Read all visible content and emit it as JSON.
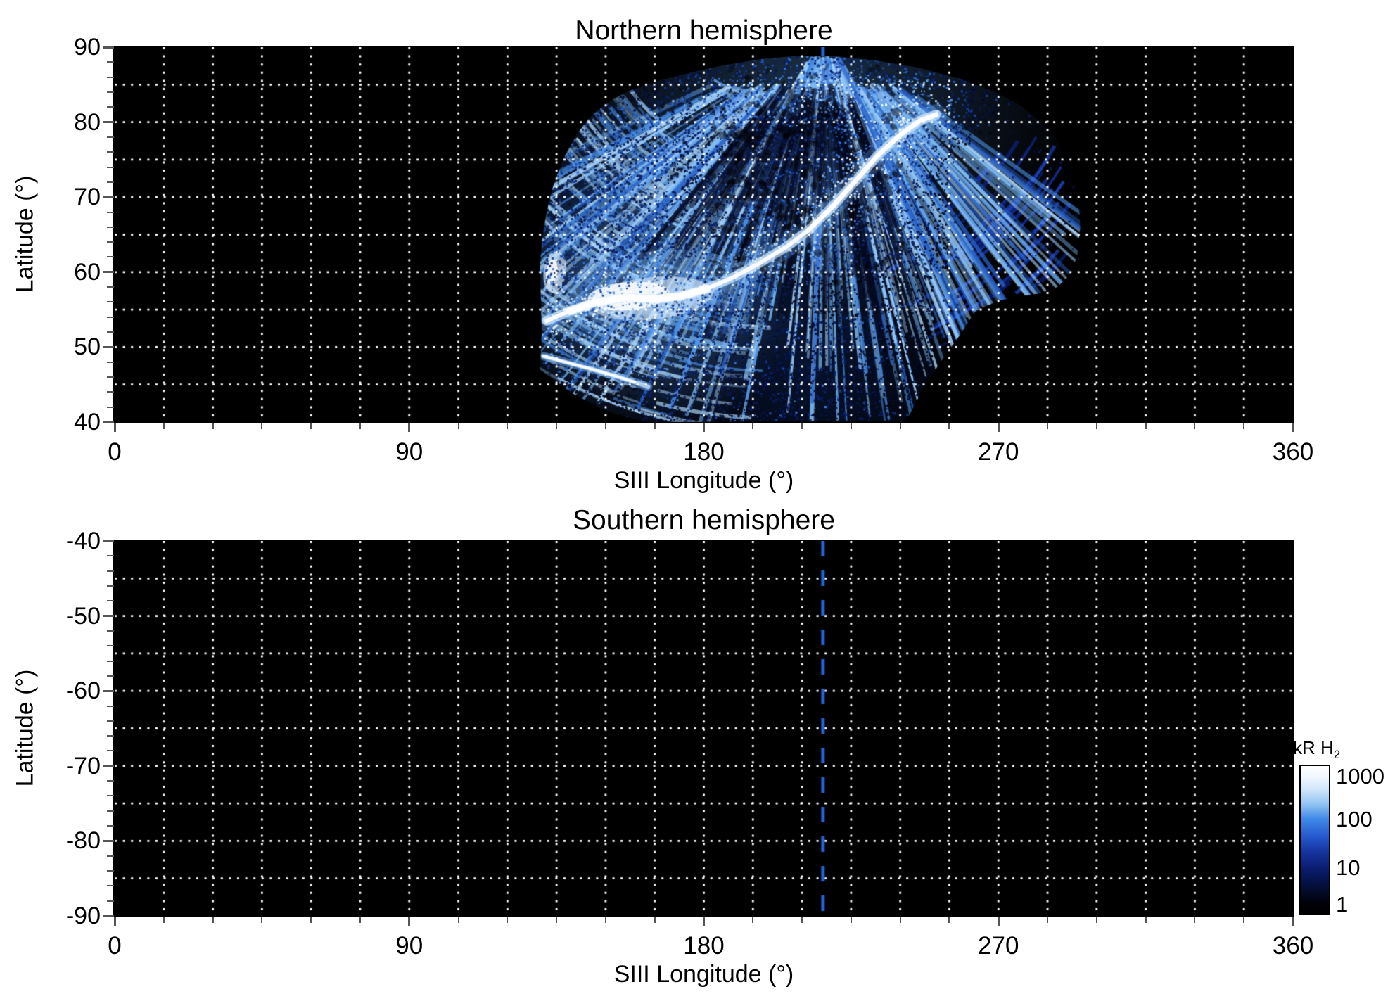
{
  "figure": {
    "panels": [
      {
        "id": "north",
        "title": "Northern hemisphere",
        "xlabel": "SIII Longitude (°)",
        "ylabel": "Latitude (°)",
        "xtick_labels": [
          "0",
          "90",
          "180",
          "270",
          "360"
        ],
        "ytick_labels": [
          "90",
          "80",
          "70",
          "60",
          "50",
          "40"
        ]
      },
      {
        "id": "south",
        "title": "Southern hemisphere",
        "xlabel": "SIII Longitude (°)",
        "ylabel": "Latitude (°)",
        "xtick_labels": [
          "0",
          "90",
          "180",
          "270",
          "360"
        ],
        "ytick_labels": [
          "-40",
          "-50",
          "-60",
          "-70",
          "-80",
          "-90"
        ]
      }
    ],
    "colorbar": {
      "title": "kR H",
      "title_sub": "2",
      "tick_labels": [
        "1000",
        "100",
        "10",
        "1"
      ]
    },
    "colors": {
      "page_bg": "#ffffff",
      "panel_bg": "#000000",
      "grid": "#ffffff",
      "marker_line": "#2262d8",
      "tick": "#555555",
      "text": "#000000"
    }
  },
  "chart_data": {
    "type": "heatmap",
    "units": "kR H2",
    "panels": [
      {
        "title": "Northern hemisphere",
        "xlabel": "SIII Longitude (°)",
        "ylabel": "Latitude (°)",
        "xlim": [
          0,
          360
        ],
        "ylim": [
          40,
          90
        ],
        "xticks": [
          0,
          90,
          180,
          270,
          360
        ],
        "yticks": [
          40,
          50,
          60,
          70,
          80,
          90
        ],
        "x_minor_step": 15,
        "y_minor_step": 2,
        "grid": {
          "x_step": 15,
          "y_step": 5,
          "style": "dotted",
          "color": "#ffffff"
        },
        "background": "#000000",
        "has_data": true,
        "features": {
          "reference_longitude_line": {
            "longitude": 216.4,
            "style": "dashed",
            "color": "#2262d8",
            "visible_lat_above": 85.5
          },
          "emission_region_outline": [
            [
              152,
              83
            ],
            [
              158,
              84.3
            ],
            [
              166,
              85.5
            ],
            [
              175,
              86.5
            ],
            [
              185,
              87.5
            ],
            [
              196,
              88.3
            ],
            [
              207,
              88.8
            ],
            [
              220,
              88.8
            ],
            [
              233,
              88.2
            ],
            [
              246,
              87.2
            ],
            [
              258,
              85.8
            ],
            [
              268,
              84.2
            ],
            [
              277,
              82.2
            ],
            [
              283,
              80
            ],
            [
              288,
              77.5
            ],
            [
              292,
              74
            ],
            [
              294.5,
              70
            ],
            [
              295,
              66
            ],
            [
              294,
              62
            ],
            [
              291.5,
              59.5
            ],
            [
              288,
              58
            ],
            [
              283,
              57.2
            ],
            [
              277,
              56.8
            ],
            [
              270,
              56.2
            ],
            [
              263,
              54.8
            ],
            [
              258,
              51.5
            ],
            [
              252,
              47.8
            ],
            [
              247,
              44.5
            ],
            [
              244,
              42
            ],
            [
              242,
              40.2
            ],
            [
              162,
              40
            ],
            [
              150,
              41.5
            ],
            [
              140,
              43.8
            ],
            [
              130,
              47
            ],
            [
              130.5,
              52
            ],
            [
              130.2,
              57
            ],
            [
              130,
              61
            ],
            [
              130.6,
              64.5
            ],
            [
              132,
              68
            ],
            [
              134,
              71.5
            ],
            [
              137,
              75
            ],
            [
              141,
              78.3
            ],
            [
              145.5,
              80.8
            ]
          ],
          "main_auroral_oval": [
            [
              132,
              53.5
            ],
            [
              139,
              54.8
            ],
            [
              147,
              56
            ],
            [
              156,
              56.6
            ],
            [
              165,
              56.4
            ],
            [
              173,
              56.8
            ],
            [
              181,
              57.8
            ],
            [
              189,
              59.3
            ],
            [
              197,
              61.2
            ],
            [
              205,
              63.3
            ],
            [
              212,
              65.6
            ],
            [
              219,
              68.6
            ],
            [
              226,
              72
            ],
            [
              233,
              75.5
            ],
            [
              240,
              78.3
            ],
            [
              246,
              80.2
            ],
            [
              251,
              81
            ]
          ],
          "secondary_arc": [
            [
              131,
              48.8
            ],
            [
              136,
              48.2
            ],
            [
              142,
              47.5
            ],
            [
              148,
              46.8
            ],
            [
              154,
              46
            ],
            [
              159,
              45.3
            ],
            [
              163,
              44.7
            ]
          ],
          "bright_patch": {
            "lon_range": [
              148,
              182
            ],
            "lat_range": [
              52,
              59
            ]
          },
          "polar_fan": {
            "converge_lon": 217,
            "lon_range": [
              150,
              285
            ],
            "lat_range": [
              79,
              89
            ]
          },
          "right_claw": {
            "lon_range": [
              258,
              295
            ],
            "lat_range": [
              56,
              84
            ]
          },
          "intensity_range_kR": [
            1,
            1000
          ]
        }
      },
      {
        "title": "Southern hemisphere",
        "xlabel": "SIII Longitude (°)",
        "ylabel": "Latitude (°)",
        "xlim": [
          0,
          360
        ],
        "ylim": [
          -90,
          -40
        ],
        "xticks": [
          0,
          90,
          180,
          270,
          360
        ],
        "yticks": [
          -90,
          -80,
          -70,
          -60,
          -50,
          -40
        ],
        "x_minor_step": 15,
        "y_minor_step": 2,
        "grid": {
          "x_step": 15,
          "y_step": 5,
          "style": "dotted",
          "color": "#ffffff"
        },
        "background": "#000000",
        "has_data": false,
        "features": {
          "reference_longitude_line": {
            "longitude": 216.4,
            "style": "dashed",
            "color": "#2262d8"
          }
        }
      }
    ],
    "colorbar": {
      "title": "kR H2",
      "scale": "log",
      "ticks": [
        1,
        10,
        100,
        1000
      ],
      "tick_fractions_from_top": [
        0.933,
        0.688,
        0.356,
        0.067
      ],
      "colors_low_to_high": [
        "#000000",
        "#0b1d72",
        "#4189e8",
        "#cfe6fa",
        "#ffffff"
      ],
      "legend_position": "right-of-south-panel"
    }
  }
}
